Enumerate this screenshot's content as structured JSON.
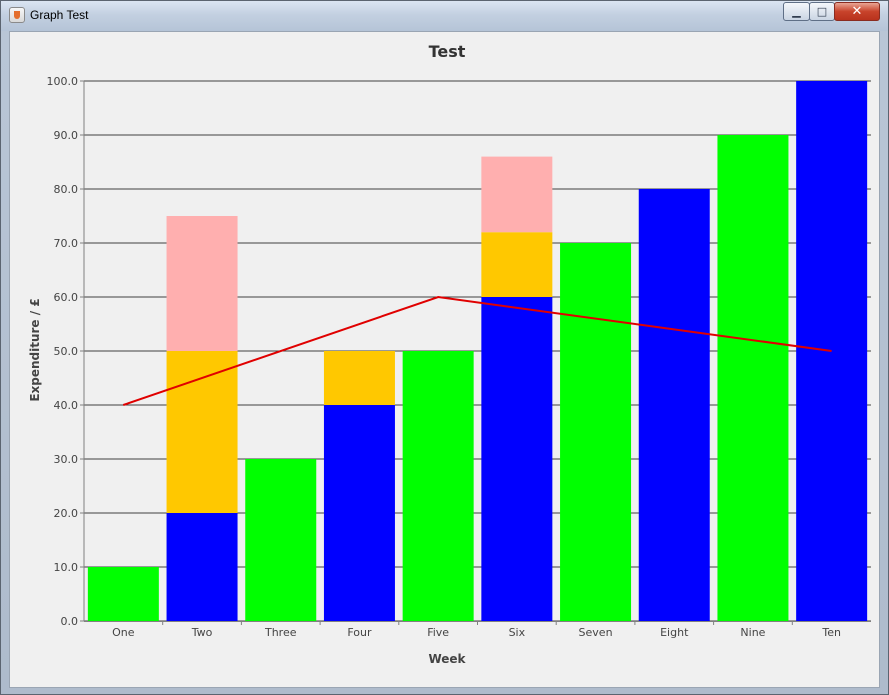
{
  "window": {
    "title": "Graph Test",
    "controls": {
      "minimize": "▁",
      "maximize": "□",
      "close": "✕"
    }
  },
  "chart_data": {
    "type": "bar",
    "stacked": true,
    "title": "Test",
    "xlabel": "Week",
    "ylabel": "Expenditure / £",
    "ylim": [
      0,
      100
    ],
    "yticks": [
      "0.0",
      "10.0",
      "20.0",
      "30.0",
      "40.0",
      "50.0",
      "60.0",
      "70.0",
      "80.0",
      "90.0",
      "100.0"
    ],
    "grid": true,
    "categories": [
      "One",
      "Two",
      "Three",
      "Four",
      "Five",
      "Six",
      "Seven",
      "Eight",
      "Nine",
      "Ten"
    ],
    "bars": [
      {
        "segments": [
          {
            "value": 10,
            "color": "#00ff00"
          }
        ]
      },
      {
        "segments": [
          {
            "value": 20,
            "color": "#0000ff"
          },
          {
            "value": 30,
            "color": "#ffc800"
          },
          {
            "value": 25,
            "color": "#ffafaf"
          }
        ]
      },
      {
        "segments": [
          {
            "value": 30,
            "color": "#00ff00"
          }
        ]
      },
      {
        "segments": [
          {
            "value": 40,
            "color": "#0000ff"
          },
          {
            "value": 10,
            "color": "#ffc800"
          }
        ]
      },
      {
        "segments": [
          {
            "value": 50,
            "color": "#00ff00"
          }
        ]
      },
      {
        "segments": [
          {
            "value": 60,
            "color": "#0000ff"
          },
          {
            "value": 12,
            "color": "#ffc800"
          },
          {
            "value": 14,
            "color": "#ffafaf"
          }
        ]
      },
      {
        "segments": [
          {
            "value": 70,
            "color": "#00ff00"
          }
        ]
      },
      {
        "segments": [
          {
            "value": 80,
            "color": "#0000ff"
          }
        ]
      },
      {
        "segments": [
          {
            "value": 90,
            "color": "#00ff00"
          }
        ]
      },
      {
        "segments": [
          {
            "value": 100,
            "color": "#0000ff"
          }
        ]
      }
    ],
    "line": {
      "color": "#e00000",
      "points": [
        {
          "x": "One",
          "y": 40
        },
        {
          "x": "Five",
          "y": 60
        },
        {
          "x": "Ten",
          "y": 50
        }
      ]
    },
    "colors": {
      "background": "#f0f0f0",
      "grid": "#404040",
      "axis": "#808080"
    }
  }
}
